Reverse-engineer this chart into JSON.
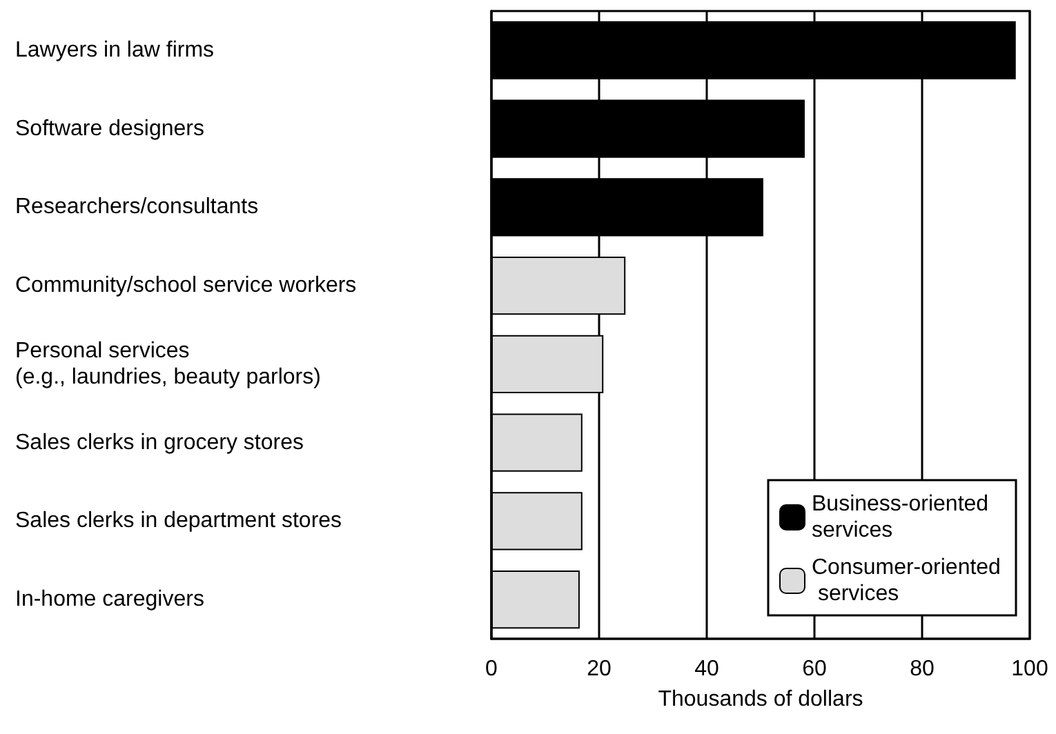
{
  "chart_data": {
    "type": "bar",
    "orientation": "horizontal",
    "xlabel": "Thousands of dollars",
    "categories": [
      "Lawyers in law firms",
      "Software designers",
      "Researchers/consultants",
      "Community/school service workers",
      "Personal services\n(e.g., laundries, beauty parlors)",
      "Sales clerks in grocery stores",
      "Sales clerks in department stores",
      "In-home caregivers"
    ],
    "series": [
      {
        "name": "Business-oriented services",
        "color": "#000000",
        "values": [
          97.4,
          58.2,
          50.5,
          null,
          null,
          null,
          null,
          null
        ]
      },
      {
        "name": "Consumer-oriented services",
        "color": "#dddddd",
        "values": [
          null,
          null,
          null,
          24.9,
          20.8,
          16.9,
          16.9,
          16.4
        ]
      }
    ],
    "xlim": [
      0,
      100
    ],
    "xticks": [
      0,
      20,
      40,
      60,
      80,
      100
    ],
    "grid": "x",
    "legend": "bottom right"
  }
}
